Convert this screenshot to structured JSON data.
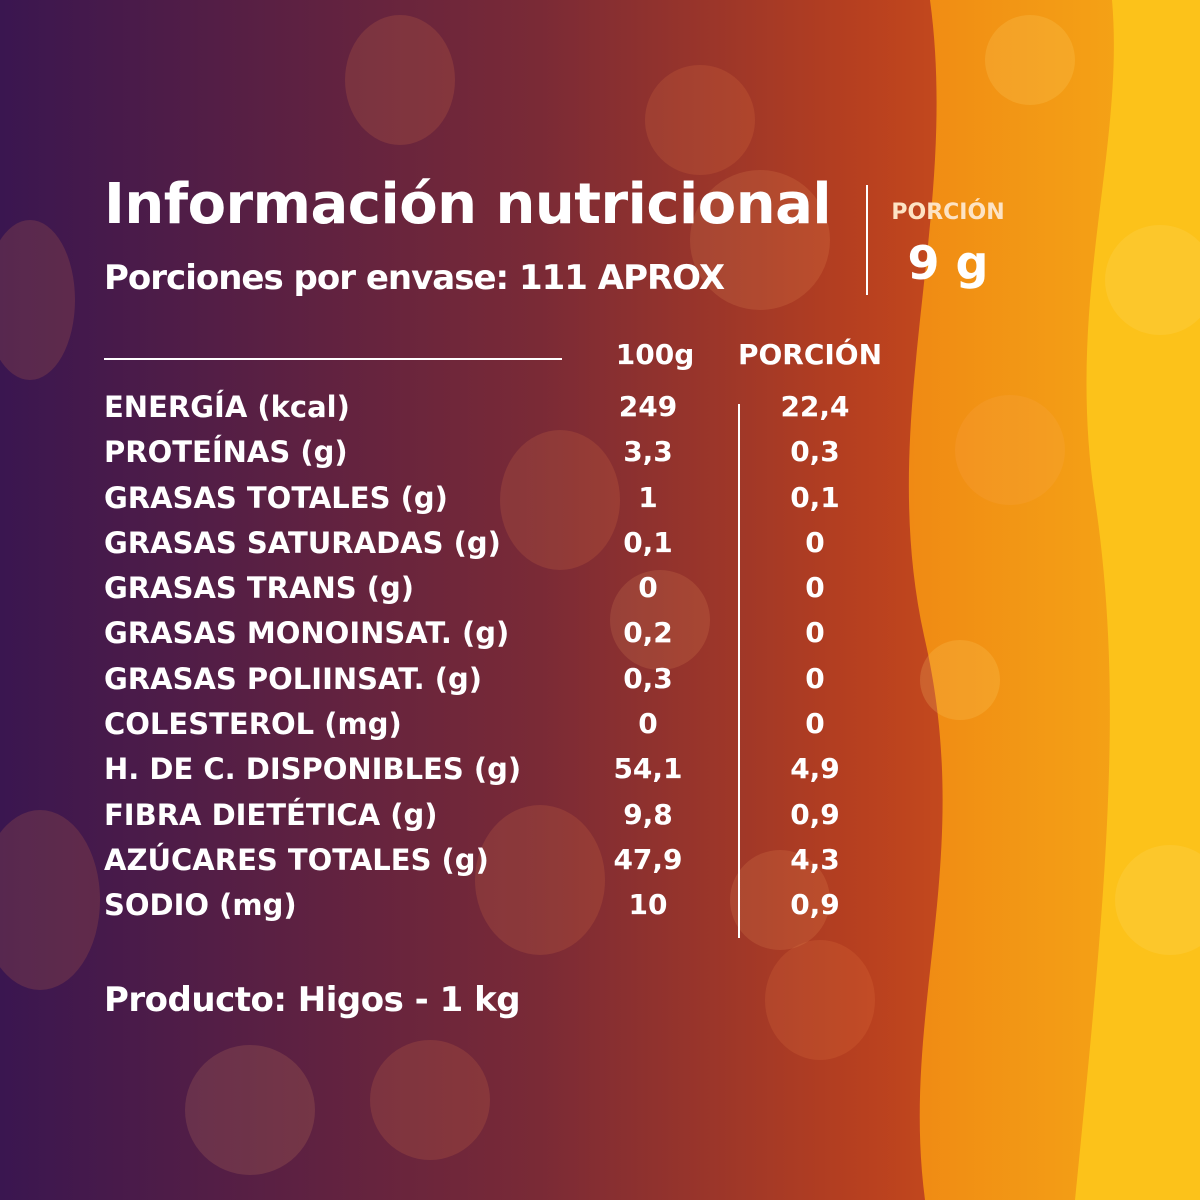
{
  "title": "Información nutricional",
  "subtitle": "Porciones por envase: 111 APROX",
  "portion": {
    "label": "PORCIÓN",
    "value": "9 g"
  },
  "columns": {
    "per100": "100g",
    "portion": "PORCIÓN"
  },
  "rows": [
    {
      "label": "ENERGÍA (kcal)",
      "per100": "249",
      "portion": "22,4"
    },
    {
      "label": "PROTEÍNAS (g)",
      "per100": "3,3",
      "portion": "0,3"
    },
    {
      "label": "GRASAS TOTALES (g)",
      "per100": "1",
      "portion": "0,1"
    },
    {
      "label": "GRASAS SATURADAS (g)",
      "per100": "0,1",
      "portion": "0"
    },
    {
      "label": "GRASAS TRANS (g)",
      "per100": "0",
      "portion": "0"
    },
    {
      "label": "GRASAS MONOINSAT. (g)",
      "per100": "0,2",
      "portion": "0"
    },
    {
      "label": "GRASAS POLIINSAT. (g)",
      "per100": "0,3",
      "portion": "0"
    },
    {
      "label": "COLESTEROL (mg)",
      "per100": "0",
      "portion": "0"
    },
    {
      "label": "H. DE C. DISPONIBLES (g)",
      "per100": "54,1",
      "portion": "4,9"
    },
    {
      "label": "FIBRA DIETÉTICA (g)",
      "per100": "9,8",
      "portion": "0,9"
    },
    {
      "label": "AZÚCARES TOTALES (g)",
      "per100": "47,9",
      "portion": "4,3"
    },
    {
      "label": "SODIO (mg)",
      "per100": "10",
      "portion": "0,9"
    }
  ],
  "product": "Producto: Higos - 1 kg",
  "colors": {
    "gradient_start": "#3a1650",
    "gradient_mid": "#8a2e2a",
    "gradient_end": "#e8651a",
    "wave_amber": "#f39a12",
    "wave_yellow": "#fcc21a",
    "text": "#ffffff"
  }
}
